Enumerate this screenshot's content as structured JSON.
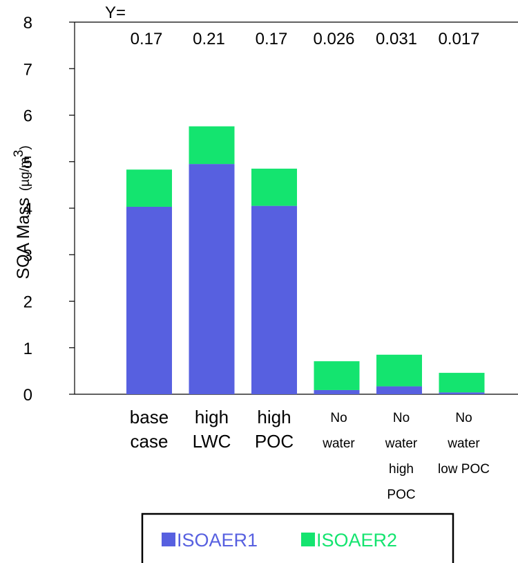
{
  "chart_data": {
    "type": "bar",
    "stacked": true,
    "title": "",
    "xlabel": "",
    "ylabel": "SOA Mass",
    "ylabel_unit": "(µg/m",
    "ylabel_unit_sup": "3",
    "ylabel_unit_close": ")",
    "ylim": [
      0,
      8
    ],
    "yticks": [
      "0",
      "1",
      "2",
      "3",
      "4",
      "5",
      "6",
      "7",
      "8"
    ],
    "grid": false,
    "legend_position": "bottom",
    "categories": [
      [
        "base",
        "case"
      ],
      [
        "high",
        "LWC"
      ],
      [
        "high",
        "POC"
      ],
      [
        "No",
        "water"
      ],
      [
        "No",
        "water",
        "high",
        "POC"
      ],
      [
        "No",
        "water",
        "low POC"
      ]
    ],
    "series": [
      {
        "name": "ISOAER1",
        "color": "#5760e0",
        "values": [
          4.03,
          4.95,
          4.05,
          0.09,
          0.17,
          0.04
        ]
      },
      {
        "name": "ISOAER2",
        "color": "#14e46f",
        "values": [
          0.8,
          0.81,
          0.8,
          0.62,
          0.68,
          0.42
        ]
      }
    ],
    "annotation_prefix": "Y=",
    "annotations": [
      "0.17",
      "0.21",
      "0.17",
      "0.026",
      "0.031",
      "0.017"
    ]
  }
}
